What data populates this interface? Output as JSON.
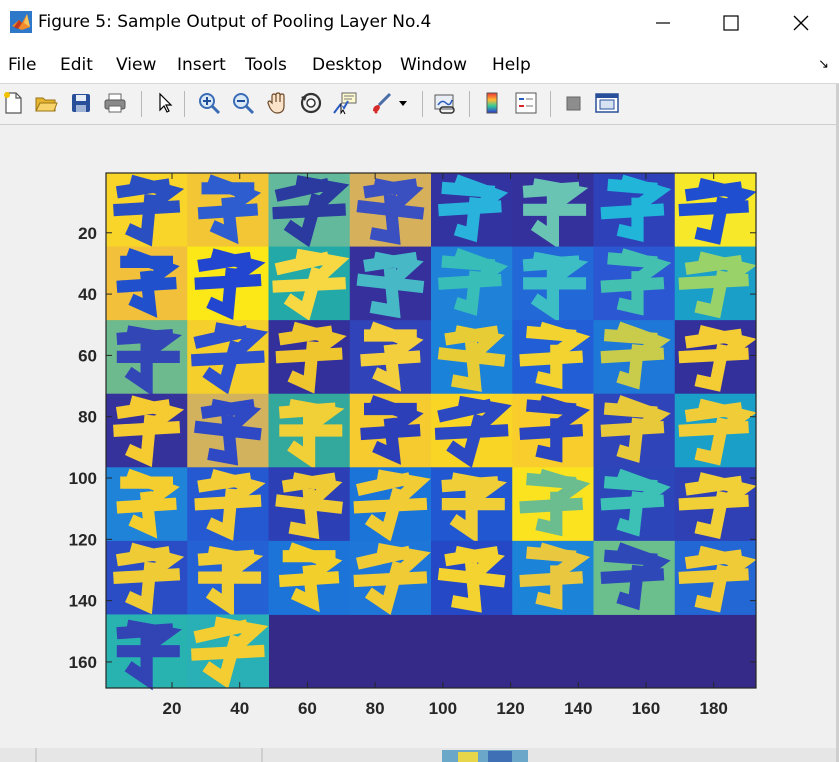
{
  "window": {
    "title": "Figure 5: Sample Output of Pooling Layer No.4",
    "app_icon": "matlab-icon",
    "controls": [
      "minimize-icon",
      "maximize-icon",
      "close-icon"
    ]
  },
  "menu": {
    "items": [
      "File",
      "Edit",
      "View",
      "Insert",
      "Tools",
      "Desktop",
      "Window",
      "Help"
    ],
    "dock_icon": "dock-arrow-icon"
  },
  "toolbar": {
    "buttons": [
      "new-figure-icon",
      "open-file-icon",
      "save-icon",
      "print-icon",
      "edit-plot-arrow-icon",
      "zoom-in-icon",
      "zoom-out-icon",
      "pan-hand-icon",
      "rotate-3d-icon",
      "data-cursor-icon",
      "brush-icon",
      "brush-dropdown-icon",
      "link-plot-icon",
      "insert-colorbar-icon",
      "insert-legend-icon",
      "hide-plot-tools-icon",
      "show-plot-tools-icon"
    ]
  },
  "chart_data": {
    "type": "heatmap",
    "description_visible": "image montage of 50 pooling-layer feature maps arranged 8 columns by 7 rows, last row has 2 maps, remainder filled with background",
    "x_ticks": [
      20,
      40,
      60,
      80,
      100,
      120,
      140,
      160,
      180
    ],
    "y_ticks": [
      20,
      40,
      60,
      80,
      100,
      120,
      140,
      160
    ],
    "xlim": [
      0.5,
      192.5
    ],
    "ylim": [
      0.5,
      168.5
    ],
    "tile_size": 24,
    "grid_cols": 8,
    "grid_rows": 7,
    "colormap": "parula",
    "empty_color": "#352a87",
    "tiles": [
      {
        "bg": "#f9d52a",
        "fg": "#2a4fc0",
        "variant": 0
      },
      {
        "bg": "#f2c634",
        "fg": "#2e5dd0",
        "variant": 1
      },
      {
        "bg": "#62b99b",
        "fg": "#2a3a9e",
        "variant": 2
      },
      {
        "bg": "#d6b05a",
        "fg": "#3a4fc0",
        "variant": 3
      },
      {
        "bg": "#3233a0",
        "fg": "#29b3dc",
        "variant": 4
      },
      {
        "bg": "#35319c",
        "fg": "#6ac4b4",
        "variant": 5
      },
      {
        "bg": "#2e41b8",
        "fg": "#21b5da",
        "variant": 6
      },
      {
        "bg": "#f7e82a",
        "fg": "#1f4fd0",
        "variant": 7
      },
      {
        "bg": "#f2c03a",
        "fg": "#2050cc",
        "variant": 1
      },
      {
        "bg": "#fbe816",
        "fg": "#2346d0",
        "variant": 0
      },
      {
        "bg": "#23aaa8",
        "fg": "#f7d843",
        "variant": 2
      },
      {
        "bg": "#35309c",
        "fg": "#47b9c6",
        "variant": 3
      },
      {
        "bg": "#1f82d8",
        "fg": "#38bdb8",
        "variant": 4
      },
      {
        "bg": "#2268d6",
        "fg": "#3dbec4",
        "variant": 5
      },
      {
        "bg": "#2b58d2",
        "fg": "#44c0b0",
        "variant": 6
      },
      {
        "bg": "#1a9fc9",
        "fg": "#9ad26a",
        "variant": 7
      },
      {
        "bg": "#6dba8f",
        "fg": "#3246b6",
        "variant": 5
      },
      {
        "bg": "#f5cf2c",
        "fg": "#2e50cc",
        "variant": 2
      },
      {
        "bg": "#33309c",
        "fg": "#f0c62f",
        "variant": 0
      },
      {
        "bg": "#3143b8",
        "fg": "#f3cf3e",
        "variant": 1
      },
      {
        "bg": "#1b82d9",
        "fg": "#e8cc36",
        "variant": 3
      },
      {
        "bg": "#225fd6",
        "fg": "#f2d330",
        "variant": 6
      },
      {
        "bg": "#1e78d8",
        "fg": "#c9cb4a",
        "variant": 4
      },
      {
        "bg": "#33309c",
        "fg": "#f4cd34",
        "variant": 7
      },
      {
        "bg": "#35329c",
        "fg": "#f6cb32",
        "variant": 0
      },
      {
        "bg": "#d2b25c",
        "fg": "#2f48c4",
        "variant": 3
      },
      {
        "bg": "#33a89c",
        "fg": "#f1cf36",
        "variant": 5
      },
      {
        "bg": "#f6cb30",
        "fg": "#2d3fb8",
        "variant": 1
      },
      {
        "bg": "#f9d625",
        "fg": "#2d49c2",
        "variant": 2
      },
      {
        "bg": "#f8cd2c",
        "fg": "#2b44c0",
        "variant": 6
      },
      {
        "bg": "#2f44b8",
        "fg": "#e8c93a",
        "variant": 4
      },
      {
        "bg": "#1a9fc9",
        "fg": "#f0cd38",
        "variant": 7
      },
      {
        "bg": "#1f84d8",
        "fg": "#f4cd2e",
        "variant": 1
      },
      {
        "bg": "#2459d2",
        "fg": "#f2cd36",
        "variant": 0
      },
      {
        "bg": "#2c3fb4",
        "fg": "#efcb36",
        "variant": 3
      },
      {
        "bg": "#1b74d8",
        "fg": "#f2cc34",
        "variant": 2
      },
      {
        "bg": "#2158d2",
        "fg": "#f0ce38",
        "variant": 5
      },
      {
        "bg": "#fbe320",
        "fg": "#6bbc8e",
        "variant": 6
      },
      {
        "bg": "#2c45b8",
        "fg": "#3dc0b6",
        "variant": 4
      },
      {
        "bg": "#2e40b4",
        "fg": "#f1cf36",
        "variant": 7
      },
      {
        "bg": "#2a4dc6",
        "fg": "#efcc36",
        "variant": 0
      },
      {
        "bg": "#2461d4",
        "fg": "#f2ce36",
        "variant": 5
      },
      {
        "bg": "#1d74d8",
        "fg": "#f3cf2c",
        "variant": 1
      },
      {
        "bg": "#1e77d8",
        "fg": "#f0cb36",
        "variant": 2
      },
      {
        "bg": "#2548c6",
        "fg": "#f4d330",
        "variant": 3
      },
      {
        "bg": "#1b84d8",
        "fg": "#e9c73e",
        "variant": 6
      },
      {
        "bg": "#6bbf8c",
        "fg": "#2f48b8",
        "variant": 4
      },
      {
        "bg": "#2267d4",
        "fg": "#efcb38",
        "variant": 7
      },
      {
        "bg": "#29b3b0",
        "fg": "#3244b4",
        "variant": 5
      },
      {
        "bg": "#28b0b6",
        "fg": "#f4cd32",
        "variant": 2
      }
    ]
  }
}
